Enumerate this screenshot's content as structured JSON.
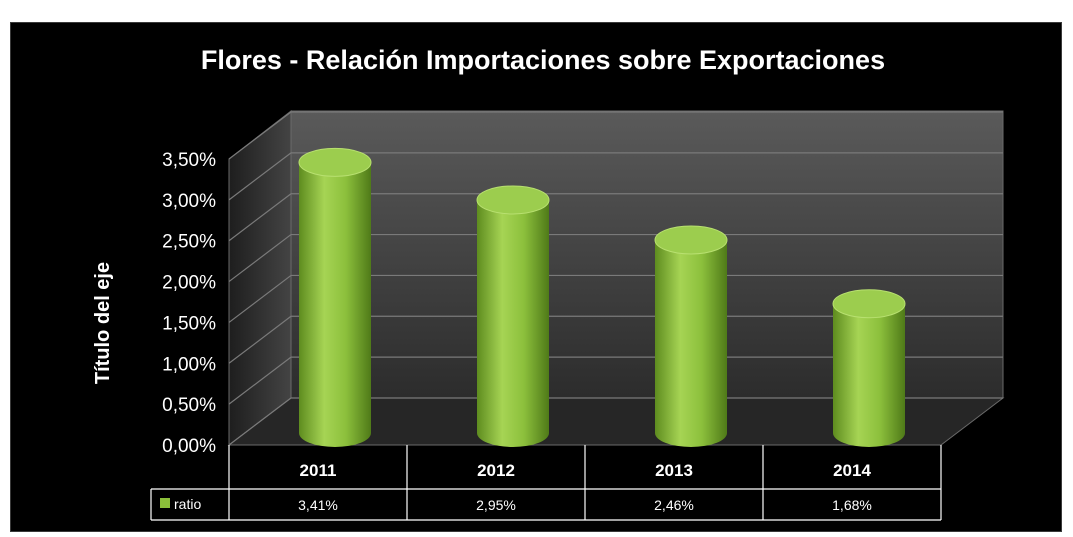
{
  "chart_data": {
    "type": "bar",
    "title": "Flores - Relación Importaciones sobre Exportaciones",
    "ylabel": "Título del eje",
    "xlabel": "",
    "categories": [
      "2011",
      "2012",
      "2013",
      "2014"
    ],
    "series": [
      {
        "name": "ratio",
        "values": [
          3.41,
          2.95,
          2.46,
          1.68
        ],
        "labels": [
          "3,41%",
          "2,95%",
          "2,46%",
          "1,68%"
        ],
        "color": "#8bbf3a"
      }
    ],
    "y_ticks": [
      "0,00%",
      "0,50%",
      "1,00%",
      "1,50%",
      "2,00%",
      "2,50%",
      "3,00%",
      "3,50%"
    ],
    "ylim": [
      0,
      3.5
    ],
    "grid": true,
    "style": "3d-cylinder",
    "data_table": true,
    "colors": {
      "background": "#000000",
      "bar": "#8bbf3a",
      "wall": "#3c3c3c",
      "text": "#ffffff"
    }
  }
}
